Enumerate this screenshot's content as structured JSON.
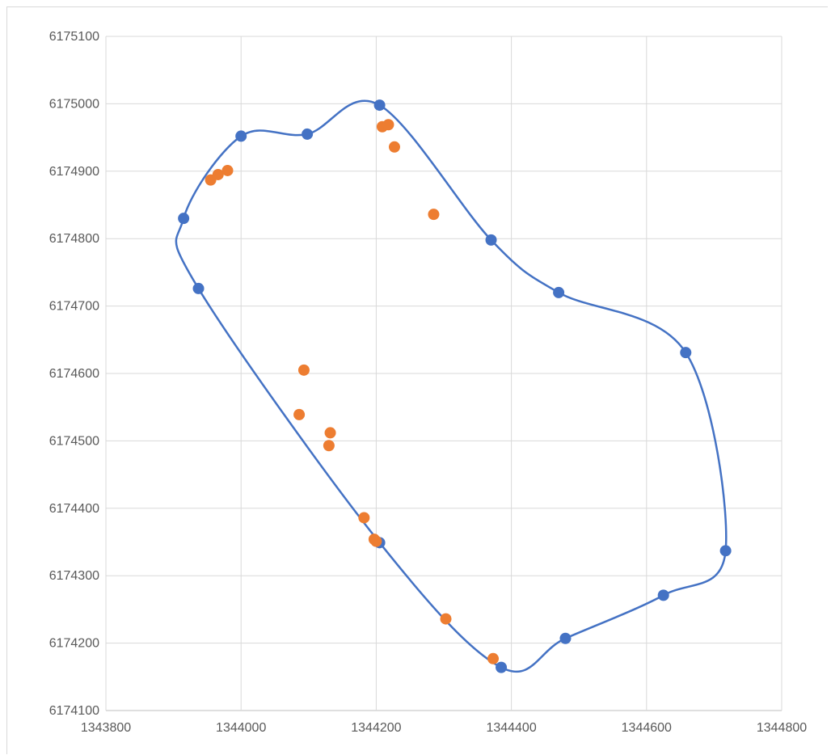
{
  "chart_data": {
    "type": "scatter",
    "title": "",
    "xlabel": "",
    "ylabel": "",
    "xlim": [
      1343800,
      1344800
    ],
    "ylim": [
      6174100,
      6175100
    ],
    "x_ticks": [
      1343800,
      1344000,
      1344200,
      1344400,
      1344600,
      1344800
    ],
    "y_ticks": [
      6174100,
      6174200,
      6174300,
      6174400,
      6174500,
      6174600,
      6174700,
      6174800,
      6174900,
      6175000,
      6175100
    ],
    "grid": true,
    "legend": "none",
    "series": [
      {
        "style": "scatter-smooth-line",
        "color": "#4472C4",
        "closed": true,
        "points": [
          [
            1344205,
            6174998
          ],
          [
            1344370,
            6174798
          ],
          [
            1344470,
            6174720
          ],
          [
            1344658,
            6174631
          ],
          [
            1344717,
            6174337
          ],
          [
            1344625,
            6174271
          ],
          [
            1344480,
            6174207
          ],
          [
            1344385,
            6174164
          ],
          [
            1344205,
            6174349
          ],
          [
            1343937,
            6174726
          ],
          [
            1343915,
            6174830
          ],
          [
            1344000,
            6174952
          ],
          [
            1344098,
            6174955
          ]
        ]
      },
      {
        "style": "scatter",
        "color": "#ED7D31",
        "points": [
          [
            1343955,
            6174887
          ],
          [
            1343966,
            6174895
          ],
          [
            1343980,
            6174901
          ],
          [
            1344209,
            6174966
          ],
          [
            1344218,
            6174969
          ],
          [
            1344227,
            6174936
          ],
          [
            1344285,
            6174836
          ],
          [
            1344093,
            6174605
          ],
          [
            1344086,
            6174539
          ],
          [
            1344132,
            6174512
          ],
          [
            1344130,
            6174493
          ],
          [
            1344182,
            6174386
          ],
          [
            1344197,
            6174354
          ],
          [
            1344200,
            6174351
          ],
          [
            1344303,
            6174236
          ],
          [
            1344373,
            6174177
          ]
        ]
      }
    ]
  }
}
